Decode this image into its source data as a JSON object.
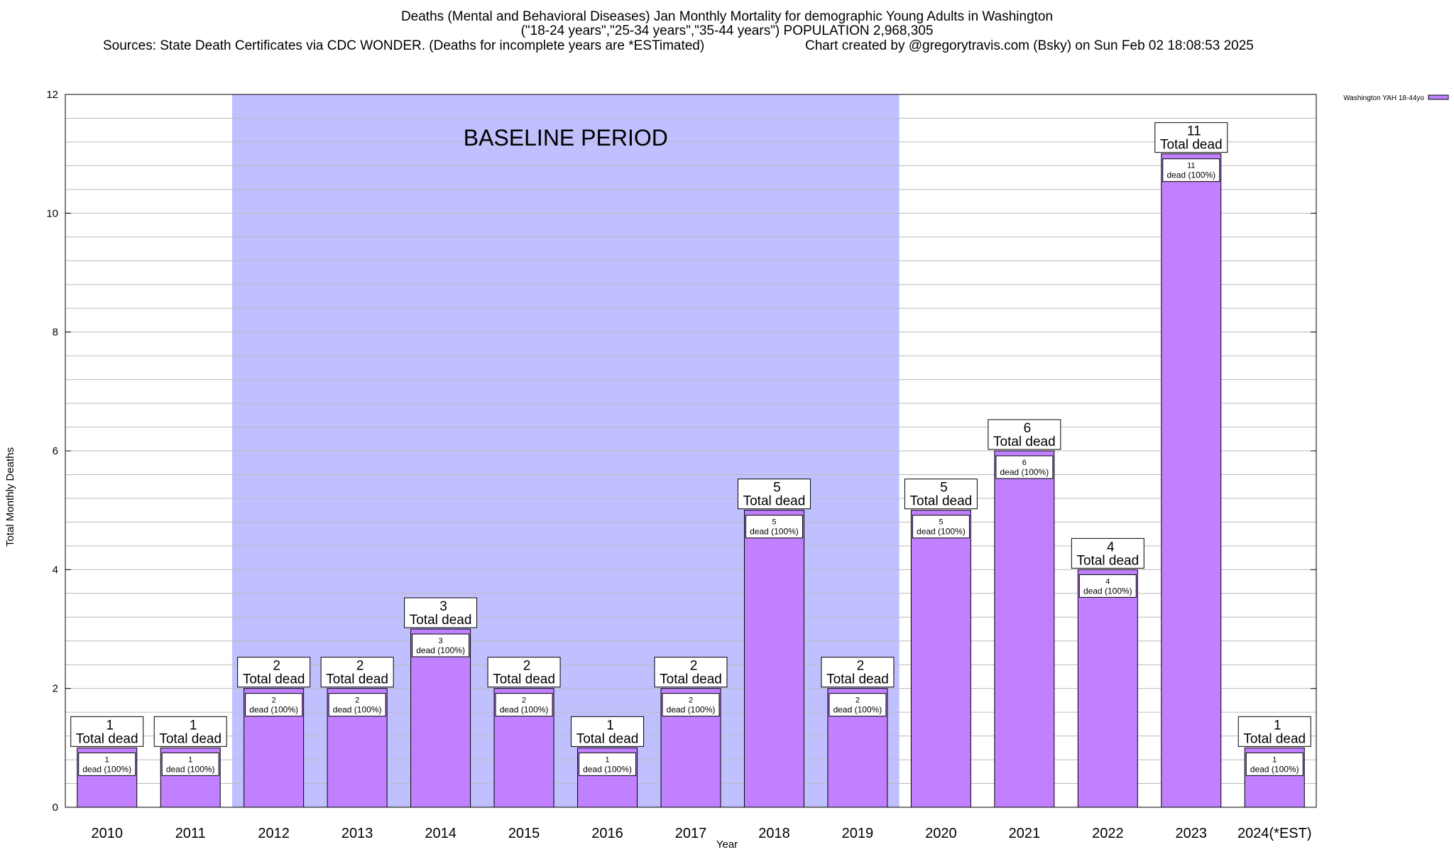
{
  "title": {
    "line1": "Deaths (Mental and Behavioral Diseases) Jan Monthly Mortality for demographic Young Adults in Washington",
    "line2": "(\"18-24 years\",\"25-34 years\",\"35-44 years\") POPULATION 2,968,305",
    "sources": "Sources: State Death Certificates via CDC WONDER. (Deaths for incomplete years are *ESTimated)",
    "credit": "Chart created by @gregorytravis.com (Bsky) on Sun Feb 02 18:08:53 2025"
  },
  "colors": {
    "bar": "#c080ff",
    "baseline_shade": "#c0c0ff",
    "grid": "#bbbbbb"
  },
  "chart_data": {
    "type": "bar",
    "xlabel": "Year",
    "ylabel": "Total Monthly Deaths",
    "ylim": [
      0,
      12
    ],
    "yticks": [
      0,
      2,
      4,
      6,
      8,
      10,
      12
    ],
    "grid": true,
    "legend_position": "top-right",
    "categories": [
      "2010",
      "2011",
      "2012",
      "2013",
      "2014",
      "2015",
      "2016",
      "2017",
      "2018",
      "2019",
      "2020",
      "2021",
      "2022",
      "2023",
      "2024(*EST)"
    ],
    "series": [
      {
        "name": "Washington YAH 18-44yo",
        "values": [
          1,
          1,
          2,
          2,
          3,
          2,
          1,
          2,
          5,
          2,
          5,
          6,
          4,
          11,
          1
        ]
      }
    ],
    "bar_label_total": "Total dead",
    "bar_label_inner": "dead (100%)",
    "baseline": {
      "label": "BASELINE PERIOD",
      "from": "2012",
      "to": "2019"
    }
  }
}
